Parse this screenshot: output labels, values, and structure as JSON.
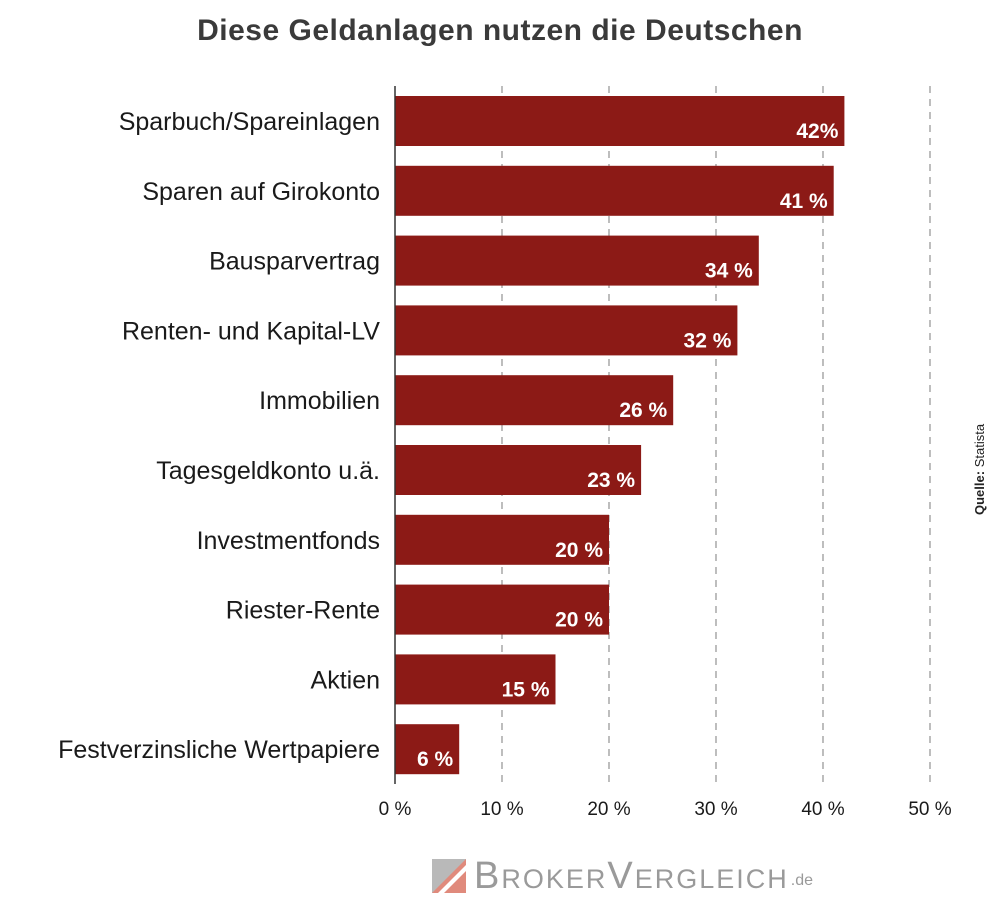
{
  "title": "Diese Geldanlagen nutzen die Deutschen",
  "source": {
    "label": "Quelle:",
    "name": "Statista"
  },
  "brand": {
    "name": "BrokerVergleich",
    "suffix": ".de"
  },
  "colors": {
    "bar": "#8c1a16",
    "grid": "#9a9a9a",
    "axis": "#333333"
  },
  "chart_data": {
    "type": "bar",
    "orientation": "horizontal",
    "title": "Diese Geldanlagen nutzen die Deutschen",
    "categories": [
      "Sparbuch/Spareinlagen",
      "Sparen auf Girokonto",
      "Bausparvertrag",
      "Renten- und Kapital-LV",
      "Immobilien",
      "Tagesgeldkonto u.ä.",
      "Investmentfonds",
      "Riester-Rente",
      "Aktien",
      "Festverzinsliche Wertpapiere"
    ],
    "values": [
      42,
      41,
      34,
      32,
      26,
      23,
      20,
      20,
      15,
      6
    ],
    "value_labels": [
      "42%",
      "41 %",
      "34 %",
      "32 %",
      "26 %",
      "23 %",
      "20 %",
      "20 %",
      "15 %",
      "6 %"
    ],
    "xlim": [
      0,
      50
    ],
    "xticks": [
      0,
      10,
      20,
      30,
      40,
      50
    ],
    "xtick_labels": [
      "0 %",
      "10 %",
      "20 %",
      "30 %",
      "40 %",
      "50 %"
    ],
    "grid": "vertical dashed",
    "xlabel": "",
    "ylabel": ""
  }
}
